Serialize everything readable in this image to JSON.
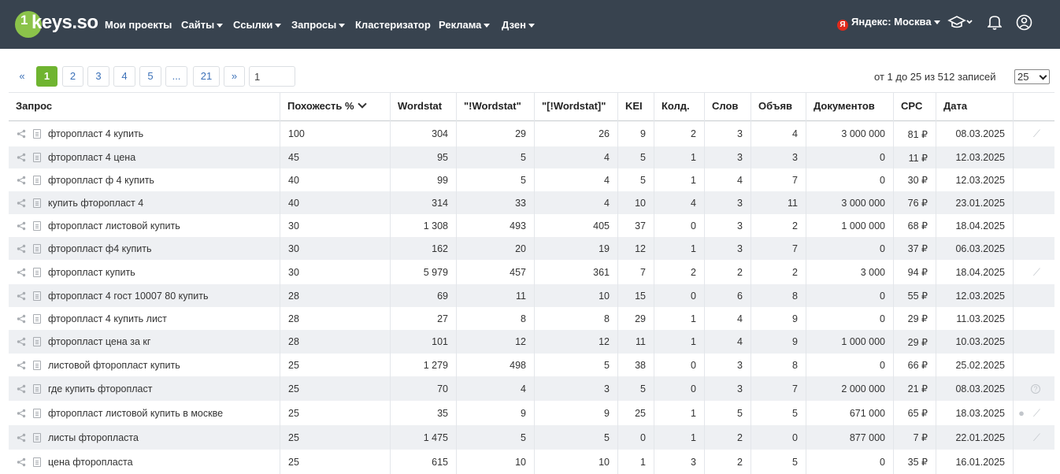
{
  "brand": {
    "logo_one": "1",
    "logo_text": "keys.so"
  },
  "nav": [
    {
      "label": "Мои проекты",
      "dropdown": false
    },
    {
      "label": "Сайты",
      "dropdown": true
    },
    {
      "label": "Ссылки",
      "dropdown": true
    },
    {
      "label": "Запросы",
      "dropdown": true
    },
    {
      "label": "Кластеризатор",
      "dropdown": false
    },
    {
      "label": "Реклама",
      "dropdown": true
    },
    {
      "label": "Дзен",
      "dropdown": true
    }
  ],
  "header_right": {
    "region_icon_letter": "Я",
    "region_label": "Яндекс: Москва",
    "icons": [
      "graduation-cap-icon",
      "bell-icon",
      "user-icon"
    ]
  },
  "pagination": {
    "prev": "«",
    "pages": [
      "1",
      "2",
      "3",
      "4",
      "5",
      "...",
      "21"
    ],
    "active": "1",
    "next": "»",
    "jump_value": "1"
  },
  "records_info": "от 1 до 25 из 512 записей",
  "per_page": "25",
  "table": {
    "headers": [
      "Запрос",
      "Похожесть %",
      "Wordstat",
      "\"!Wordstat\"",
      "\"[!Wordstat]\"",
      "KEI",
      "Колд.",
      "Слов",
      "Объяв",
      "Документов",
      "CPC",
      "Дата"
    ],
    "sorted_column": "Похожесть %",
    "rows": [
      {
        "query": "фторопласт 4 купить",
        "sim": "100",
        "ws": "304",
        "ws_ex": "29",
        "ws_br": "26",
        "kei": "9",
        "kold": "2",
        "words": "3",
        "ads": "4",
        "docs": "3 000 000",
        "cpc": "81 ₽",
        "date": "08.03.2025",
        "actions": [
          "magic-wand-icon"
        ]
      },
      {
        "query": "фторопласт 4 цена",
        "sim": "45",
        "ws": "95",
        "ws_ex": "5",
        "ws_br": "4",
        "kei": "5",
        "kold": "1",
        "words": "3",
        "ads": "3",
        "docs": "0",
        "cpc": "11 ₽",
        "date": "12.03.2025",
        "actions": []
      },
      {
        "query": "фторопласт ф 4 купить",
        "sim": "40",
        "ws": "99",
        "ws_ex": "5",
        "ws_br": "4",
        "kei": "5",
        "kold": "1",
        "words": "4",
        "ads": "7",
        "docs": "0",
        "cpc": "30 ₽",
        "date": "12.03.2025",
        "actions": []
      },
      {
        "query": "купить фторопласт 4",
        "sim": "40",
        "ws": "314",
        "ws_ex": "33",
        "ws_br": "4",
        "kei": "10",
        "kold": "4",
        "words": "3",
        "ads": "11",
        "docs": "3 000 000",
        "cpc": "76 ₽",
        "date": "23.01.2025",
        "actions": []
      },
      {
        "query": "фторопласт листовой купить",
        "sim": "30",
        "ws": "1 308",
        "ws_ex": "493",
        "ws_br": "405",
        "kei": "37",
        "kold": "0",
        "words": "3",
        "ads": "2",
        "docs": "1 000 000",
        "cpc": "68 ₽",
        "date": "18.04.2025",
        "actions": []
      },
      {
        "query": "фторопласт ф4 купить",
        "sim": "30",
        "ws": "162",
        "ws_ex": "20",
        "ws_br": "19",
        "kei": "12",
        "kold": "1",
        "words": "3",
        "ads": "7",
        "docs": "0",
        "cpc": "37 ₽",
        "date": "06.03.2025",
        "actions": []
      },
      {
        "query": "фторопласт купить",
        "sim": "30",
        "ws": "5 979",
        "ws_ex": "457",
        "ws_br": "361",
        "kei": "7",
        "kold": "2",
        "words": "2",
        "ads": "2",
        "docs": "3 000",
        "cpc": "94 ₽",
        "date": "18.04.2025",
        "actions": [
          "magic-wand-icon"
        ]
      },
      {
        "query": "фторопласт 4 гост 10007 80 купить",
        "sim": "28",
        "ws": "69",
        "ws_ex": "11",
        "ws_br": "10",
        "kei": "15",
        "kold": "0",
        "words": "6",
        "ads": "8",
        "docs": "0",
        "cpc": "55 ₽",
        "date": "12.03.2025",
        "actions": []
      },
      {
        "query": "фторопласт 4 купить лист",
        "sim": "28",
        "ws": "27",
        "ws_ex": "8",
        "ws_br": "8",
        "kei": "29",
        "kold": "1",
        "words": "4",
        "ads": "9",
        "docs": "0",
        "cpc": "29 ₽",
        "date": "11.03.2025",
        "actions": []
      },
      {
        "query": "фторопласт цена за кг",
        "sim": "28",
        "ws": "101",
        "ws_ex": "12",
        "ws_br": "12",
        "kei": "11",
        "kold": "1",
        "words": "4",
        "ads": "9",
        "docs": "1 000 000",
        "cpc": "29 ₽",
        "date": "10.03.2025",
        "actions": []
      },
      {
        "query": "листовой фторопласт купить",
        "sim": "25",
        "ws": "1 279",
        "ws_ex": "498",
        "ws_br": "5",
        "kei": "38",
        "kold": "0",
        "words": "3",
        "ads": "8",
        "docs": "0",
        "cpc": "66 ₽",
        "date": "25.02.2025",
        "actions": []
      },
      {
        "query": "где купить фторопласт",
        "sim": "25",
        "ws": "70",
        "ws_ex": "4",
        "ws_br": "3",
        "kei": "5",
        "kold": "0",
        "words": "3",
        "ads": "7",
        "docs": "2 000 000",
        "cpc": "21 ₽",
        "date": "08.03.2025",
        "actions": [
          "question-icon"
        ]
      },
      {
        "query": "фторопласт листовой купить в москве",
        "sim": "25",
        "ws": "35",
        "ws_ex": "9",
        "ws_br": "9",
        "kei": "25",
        "kold": "1",
        "words": "5",
        "ads": "5",
        "docs": "671 000",
        "cpc": "65 ₽",
        "date": "18.03.2025",
        "actions": [
          "globe-icon",
          "magic-wand-icon"
        ]
      },
      {
        "query": "листы фторопласта",
        "sim": "25",
        "ws": "1 475",
        "ws_ex": "5",
        "ws_br": "5",
        "kei": "0",
        "kold": "1",
        "words": "2",
        "ads": "0",
        "docs": "877 000",
        "cpc": "7 ₽",
        "date": "22.01.2025",
        "actions": [
          "magic-wand-icon"
        ]
      },
      {
        "query": "цена фторопласта",
        "sim": "25",
        "ws": "615",
        "ws_ex": "10",
        "ws_br": "10",
        "kei": "1",
        "kold": "3",
        "words": "2",
        "ads": "5",
        "docs": "0",
        "cpc": "35 ₽",
        "date": "16.01.2025",
        "actions": []
      }
    ]
  },
  "colors": {
    "navbar": "#38434f",
    "accent_green": "#6fb430",
    "row_stripe": "#eef0f3",
    "link_blue": "#3c71b8"
  }
}
